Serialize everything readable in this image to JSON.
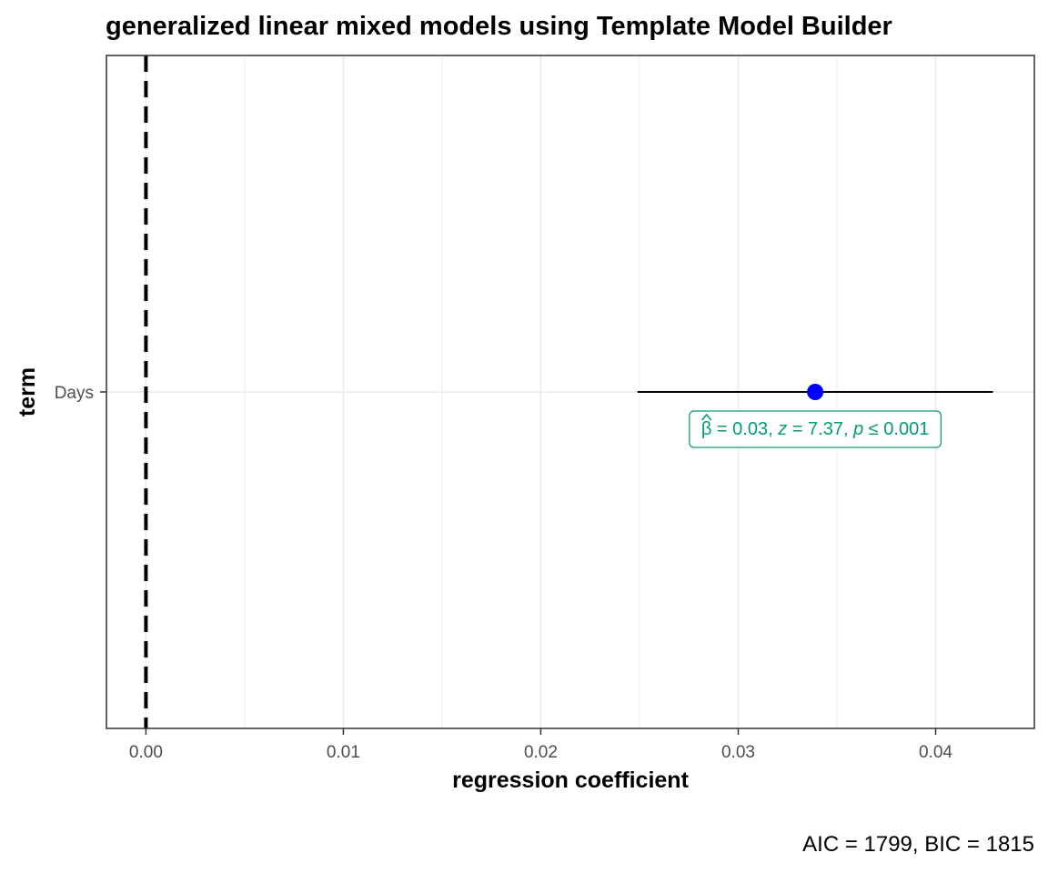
{
  "chart_data": {
    "type": "scatter",
    "title": "generalized linear mixed models using Template Model Builder",
    "xlabel": "regression coefficient",
    "ylabel": "term",
    "xlim": [
      -0.002,
      0.045
    ],
    "x_ticks": [
      "0.00",
      "0.01",
      "0.02",
      "0.03",
      "0.04"
    ],
    "x_tick_values": [
      0.0,
      0.01,
      0.02,
      0.03,
      0.04
    ],
    "categories": [
      "Days"
    ],
    "estimates": [
      {
        "term": "Days",
        "estimate": 0.0339,
        "conf_low": 0.0249,
        "conf_high": 0.0429,
        "label": {
          "beta": "β",
          "beta_value": "0.03",
          "z_symbol": "z",
          "z_value": "7.37",
          "p_symbol": "p",
          "p_value": "0.001"
        }
      }
    ],
    "reference_line_x": 0,
    "caption": "AIC = 1799, BIC = 1815",
    "grid": true,
    "legend": "none",
    "colors": {
      "point": "#0000ff",
      "errorbar": "#000000",
      "label": "#009e73",
      "reference_line": "#000000",
      "grid": "#ebebeb",
      "panel_border": "#333333"
    }
  }
}
